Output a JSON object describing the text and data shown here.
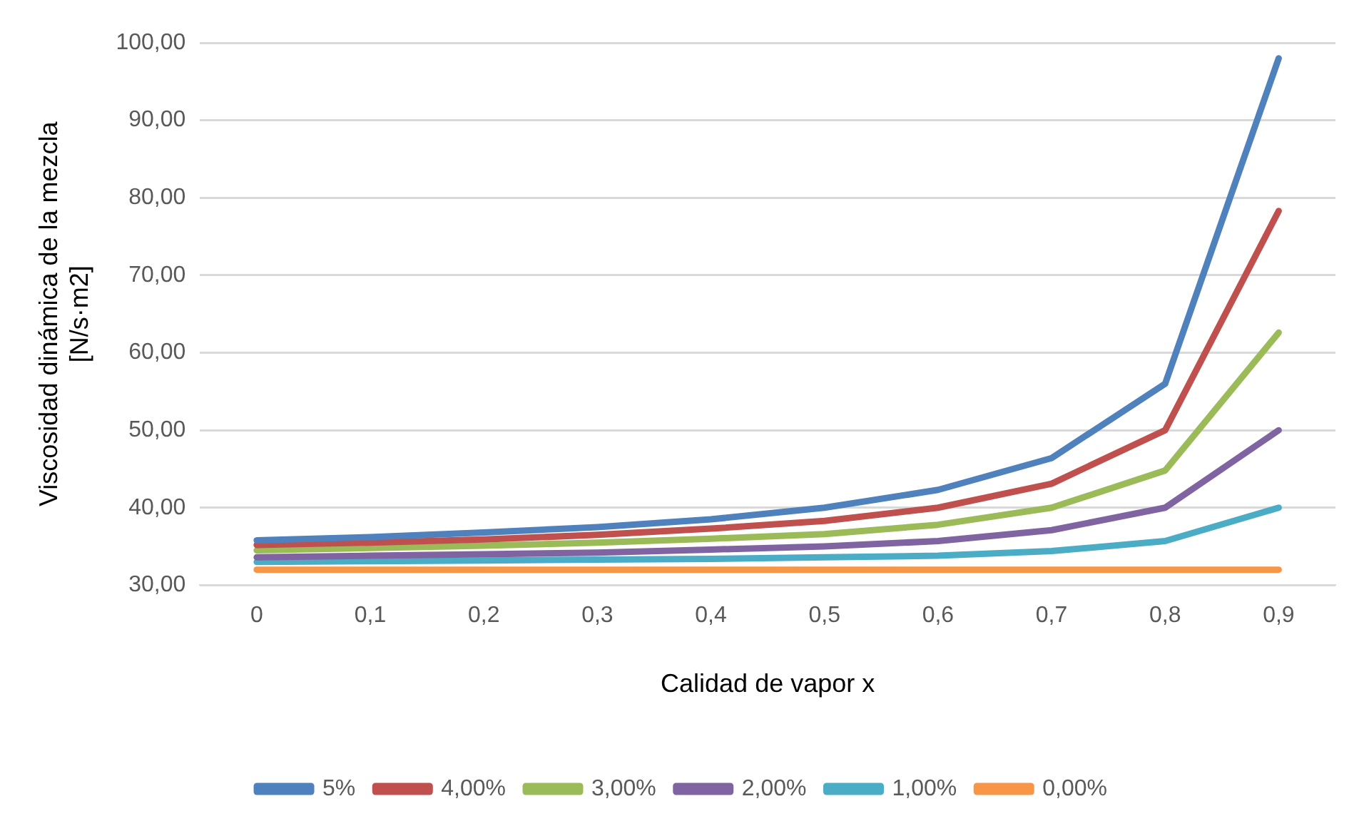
{
  "chart_data": {
    "type": "line",
    "xlabel": "Calidad de vapor x",
    "ylabel": "Viscosidad dinámica de la mezcla [N/s·m2]",
    "categories": [
      "0",
      "0,1",
      "0,2",
      "0,3",
      "0,4",
      "0,5",
      "0,6",
      "0,7",
      "0,8",
      "0,9"
    ],
    "series": [
      {
        "name": "5%",
        "color": "#4f81bd",
        "values": [
          35.8,
          36.2,
          36.8,
          37.5,
          38.5,
          40,
          42.3,
          46.4,
          56,
          98
        ]
      },
      {
        "name": "4,00%",
        "color": "#c0504d",
        "values": [
          35.2,
          35.5,
          35.9,
          36.5,
          37.3,
          38.3,
          40,
          43.1,
          50,
          78.3
        ]
      },
      {
        "name": "3,00%",
        "color": "#9bbb59",
        "values": [
          34.5,
          34.8,
          35.1,
          35.5,
          36,
          36.6,
          37.8,
          40,
          44.8,
          62.6
        ]
      },
      {
        "name": "2,00%",
        "color": "#8064a2",
        "values": [
          33.6,
          33.8,
          34,
          34.2,
          34.6,
          35,
          35.7,
          37.1,
          40,
          50
        ]
      },
      {
        "name": "1,00%",
        "color": "#4bacc6",
        "values": [
          33,
          33.1,
          33.2,
          33.3,
          33.4,
          33.6,
          33.8,
          34.4,
          35.7,
          40
        ]
      },
      {
        "name": "0,00%",
        "color": "#f79646",
        "values": [
          32,
          32,
          32,
          32,
          32,
          32,
          32,
          32,
          32,
          32
        ]
      }
    ],
    "ylim": [
      30,
      100
    ],
    "yticks": [
      {
        "value": 30,
        "label": "30,00"
      },
      {
        "value": 40,
        "label": "40,00"
      },
      {
        "value": 50,
        "label": "50,00"
      },
      {
        "value": 60,
        "label": "60,00"
      },
      {
        "value": 70,
        "label": "70,00"
      },
      {
        "value": 80,
        "label": "80,00"
      },
      {
        "value": 90,
        "label": "90,00"
      },
      {
        "value": 100,
        "label": "100,00"
      }
    ],
    "grid": "y",
    "legend": "bottom",
    "marker": "none",
    "line_style": "solid"
  }
}
